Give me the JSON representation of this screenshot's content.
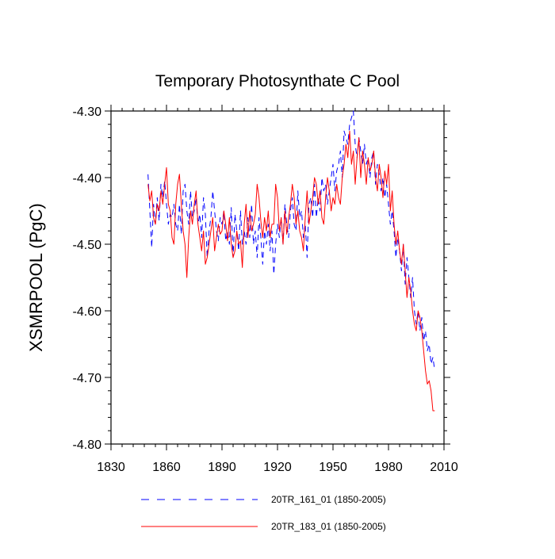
{
  "chart_data": {
    "type": "line",
    "title": "Temporary Photosynthate C Pool",
    "xlabel": "",
    "ylabel": "XSMRPOOL  (PgC)",
    "xlim": [
      1830,
      2010
    ],
    "ylim": [
      -4.8,
      -4.3
    ],
    "xticks": [
      1830,
      1860,
      1890,
      1920,
      1950,
      1980,
      2010
    ],
    "xtick_labels": [
      "1830",
      "1860",
      "1890",
      "1920",
      "1950",
      "1980",
      "2010"
    ],
    "yticks": [
      -4.8,
      -4.7,
      -4.6,
      -4.5,
      -4.4,
      -4.3
    ],
    "ytick_labels": [
      "-4.80",
      "-4.70",
      "-4.60",
      "-4.50",
      "-4.40",
      "-4.30"
    ],
    "grid": false,
    "legend_position": "bottom",
    "x": [
      1850,
      1851,
      1852,
      1853,
      1854,
      1855,
      1856,
      1857,
      1858,
      1859,
      1860,
      1861,
      1862,
      1863,
      1864,
      1865,
      1866,
      1867,
      1868,
      1869,
      1870,
      1871,
      1872,
      1873,
      1874,
      1875,
      1876,
      1877,
      1878,
      1879,
      1880,
      1881,
      1882,
      1883,
      1884,
      1885,
      1886,
      1887,
      1888,
      1889,
      1890,
      1891,
      1892,
      1893,
      1894,
      1895,
      1896,
      1897,
      1898,
      1899,
      1900,
      1901,
      1902,
      1903,
      1904,
      1905,
      1906,
      1907,
      1908,
      1909,
      1910,
      1911,
      1912,
      1913,
      1914,
      1915,
      1916,
      1917,
      1918,
      1919,
      1920,
      1921,
      1922,
      1923,
      1924,
      1925,
      1926,
      1927,
      1928,
      1929,
      1930,
      1931,
      1932,
      1933,
      1934,
      1935,
      1936,
      1937,
      1938,
      1939,
      1940,
      1941,
      1942,
      1943,
      1944,
      1945,
      1946,
      1947,
      1948,
      1949,
      1950,
      1951,
      1952,
      1953,
      1954,
      1955,
      1956,
      1957,
      1958,
      1959,
      1960,
      1961,
      1962,
      1963,
      1964,
      1965,
      1966,
      1967,
      1968,
      1969,
      1970,
      1971,
      1972,
      1973,
      1974,
      1975,
      1976,
      1977,
      1978,
      1979,
      1980,
      1981,
      1982,
      1983,
      1984,
      1985,
      1986,
      1987,
      1988,
      1989,
      1990,
      1991,
      1992,
      1993,
      1994,
      1995,
      1996,
      1997,
      1998,
      1999,
      2000,
      2001,
      2002,
      2003,
      2004,
      2005
    ],
    "series": [
      {
        "name": "20TR_161_01 (1850-2005)",
        "color": "#0000ff",
        "dash": "dashed",
        "values": [
          -4.395,
          -4.45,
          -4.505,
          -4.44,
          -4.47,
          -4.43,
          -4.465,
          -4.41,
          -4.43,
          -4.405,
          -4.44,
          -4.47,
          -4.455,
          -4.46,
          -4.44,
          -4.47,
          -4.48,
          -4.44,
          -4.485,
          -4.42,
          -4.41,
          -4.45,
          -4.47,
          -4.42,
          -4.46,
          -4.45,
          -4.43,
          -4.47,
          -4.455,
          -4.49,
          -4.43,
          -4.455,
          -4.52,
          -4.48,
          -4.46,
          -4.42,
          -4.45,
          -4.48,
          -4.495,
          -4.46,
          -4.47,
          -4.45,
          -4.495,
          -4.48,
          -4.5,
          -4.445,
          -4.52,
          -4.455,
          -4.48,
          -4.51,
          -4.45,
          -4.5,
          -4.48,
          -4.5,
          -4.46,
          -4.49,
          -4.44,
          -4.5,
          -4.48,
          -4.52,
          -4.46,
          -4.49,
          -4.53,
          -4.48,
          -4.5,
          -4.47,
          -4.51,
          -4.48,
          -4.545,
          -4.5,
          -4.47,
          -4.49,
          -4.46,
          -4.5,
          -4.44,
          -4.47,
          -4.49,
          -4.45,
          -4.43,
          -4.47,
          -4.48,
          -4.42,
          -4.46,
          -4.45,
          -4.49,
          -4.47,
          -4.52,
          -4.44,
          -4.43,
          -4.46,
          -4.41,
          -4.46,
          -4.43,
          -4.45,
          -4.4,
          -4.42,
          -4.41,
          -4.44,
          -4.42,
          -4.4,
          -4.38,
          -4.42,
          -4.39,
          -4.38,
          -4.36,
          -4.4,
          -4.33,
          -4.34,
          -4.35,
          -4.32,
          -4.31,
          -4.3,
          -4.35,
          -4.37,
          -4.34,
          -4.36,
          -4.38,
          -4.35,
          -4.38,
          -4.37,
          -4.4,
          -4.37,
          -4.36,
          -4.41,
          -4.38,
          -4.395,
          -4.42,
          -4.4,
          -4.43,
          -4.41,
          -4.44,
          -4.47,
          -4.45,
          -4.48,
          -4.52,
          -4.49,
          -4.51,
          -4.54,
          -4.5,
          -4.56,
          -4.52,
          -4.55,
          -4.58,
          -4.55,
          -4.6,
          -4.62,
          -4.6,
          -4.63,
          -4.61,
          -4.645,
          -4.63,
          -4.66,
          -4.65,
          -4.68,
          -4.67,
          -4.69
        ]
      },
      {
        "name": "20TR_183_01 (1850-2005)",
        "color": "#ff0000",
        "dash": "solid",
        "values": [
          -4.41,
          -4.435,
          -4.42,
          -4.46,
          -4.47,
          -4.44,
          -4.45,
          -4.42,
          -4.44,
          -4.41,
          -4.385,
          -4.44,
          -4.45,
          -4.49,
          -4.5,
          -4.44,
          -4.41,
          -4.395,
          -4.44,
          -4.48,
          -4.5,
          -4.55,
          -4.49,
          -4.45,
          -4.47,
          -4.44,
          -4.42,
          -4.47,
          -4.49,
          -4.51,
          -4.48,
          -4.53,
          -4.52,
          -4.5,
          -4.48,
          -4.46,
          -4.51,
          -4.49,
          -4.47,
          -4.485,
          -4.48,
          -4.45,
          -4.47,
          -4.495,
          -4.46,
          -4.5,
          -4.52,
          -4.51,
          -4.48,
          -4.5,
          -4.495,
          -4.535,
          -4.47,
          -4.44,
          -4.49,
          -4.45,
          -4.48,
          -4.47,
          -4.455,
          -4.41,
          -4.43,
          -4.465,
          -4.49,
          -4.46,
          -4.48,
          -4.45,
          -4.49,
          -4.47,
          -4.47,
          -4.41,
          -4.43,
          -4.48,
          -4.46,
          -4.5,
          -4.45,
          -4.485,
          -4.46,
          -4.44,
          -4.41,
          -4.43,
          -4.47,
          -4.45,
          -4.48,
          -4.49,
          -4.51,
          -4.46,
          -4.42,
          -4.47,
          -4.45,
          -4.43,
          -4.4,
          -4.41,
          -4.44,
          -4.42,
          -4.46,
          -4.47,
          -4.43,
          -4.4,
          -4.42,
          -4.45,
          -4.43,
          -4.44,
          -4.41,
          -4.43,
          -4.44,
          -4.4,
          -4.38,
          -4.35,
          -4.37,
          -4.33,
          -4.38,
          -4.36,
          -4.41,
          -4.37,
          -4.34,
          -4.4,
          -4.36,
          -4.38,
          -4.41,
          -4.37,
          -4.39,
          -4.38,
          -4.36,
          -4.4,
          -4.42,
          -4.38,
          -4.4,
          -4.43,
          -4.39,
          -4.41,
          -4.38,
          -4.45,
          -4.42,
          -4.47,
          -4.5,
          -4.48,
          -4.51,
          -4.53,
          -4.5,
          -4.54,
          -4.58,
          -4.55,
          -4.57,
          -4.6,
          -4.62,
          -4.63,
          -4.6,
          -4.61,
          -4.63,
          -4.66,
          -4.69,
          -4.71,
          -4.705,
          -4.72,
          -4.75,
          -4.75
        ]
      }
    ]
  }
}
